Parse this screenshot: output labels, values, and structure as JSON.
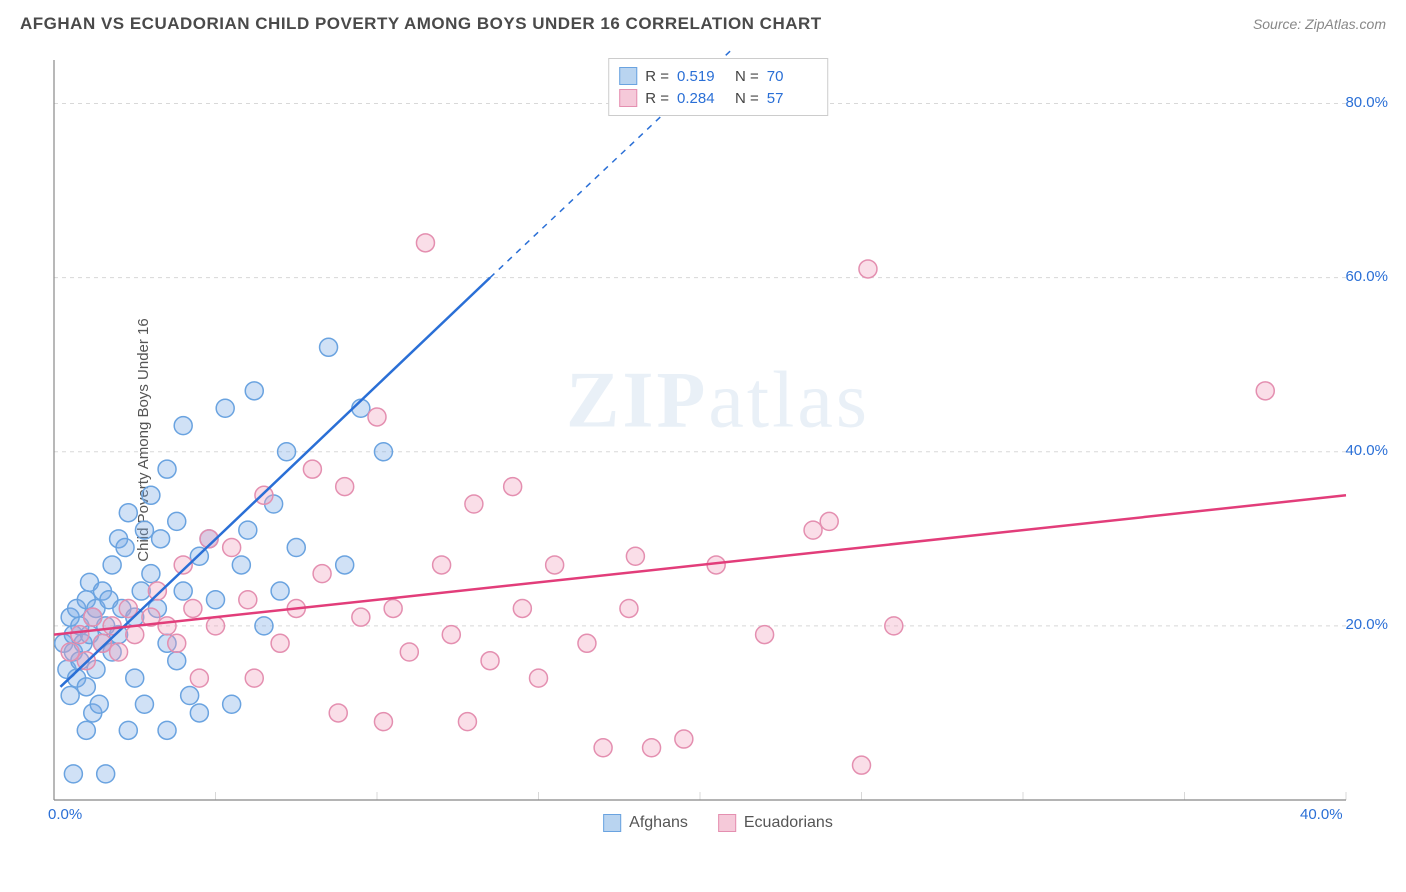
{
  "title": "AFGHAN VS ECUADORIAN CHILD POVERTY AMONG BOYS UNDER 16 CORRELATION CHART",
  "source": "Source: ZipAtlas.com",
  "y_axis_label": "Child Poverty Among Boys Under 16",
  "watermark": "ZIPatlas",
  "chart": {
    "type": "scatter",
    "background_color": "#ffffff",
    "grid_color": "#d8d8d8",
    "axis_color": "#888888",
    "tick_label_color": "#2a6fd6",
    "xlim": [
      0,
      40
    ],
    "ylim": [
      0,
      85
    ],
    "x_ticks": [
      0,
      5,
      10,
      15,
      20,
      25,
      30,
      35,
      40
    ],
    "x_tick_labels": [
      "0.0%",
      "",
      "",
      "",
      "",
      "",
      "",
      "",
      "40.0%"
    ],
    "y_ticks": [
      20,
      40,
      60,
      80
    ],
    "y_tick_labels": [
      "20.0%",
      "40.0%",
      "60.0%",
      "80.0%"
    ],
    "marker_radius": 9,
    "marker_stroke_width": 1.5,
    "trend_line_width": 2.5,
    "series": [
      {
        "name": "Afghans",
        "color_fill": "rgba(120,170,230,0.35)",
        "color_stroke": "#6aa3e0",
        "swatch_fill": "#b9d4f0",
        "swatch_stroke": "#6aa3e0",
        "R": "0.519",
        "N": "70",
        "trend": {
          "x1": 0.2,
          "y1": 13,
          "x2": 13.5,
          "y2": 60,
          "dash_from_x": 13.5,
          "dash_to_x": 21.5,
          "dash_to_y": 88
        },
        "trend_color": "#2a6fd6",
        "points": [
          [
            0.3,
            18
          ],
          [
            0.4,
            15
          ],
          [
            0.5,
            12
          ],
          [
            0.5,
            21
          ],
          [
            0.6,
            17
          ],
          [
            0.6,
            19
          ],
          [
            0.7,
            14
          ],
          [
            0.7,
            22
          ],
          [
            0.8,
            20
          ],
          [
            0.8,
            16
          ],
          [
            0.9,
            18
          ],
          [
            1.0,
            13
          ],
          [
            1.0,
            23
          ],
          [
            1.1,
            19
          ],
          [
            1.1,
            25
          ],
          [
            1.2,
            21
          ],
          [
            1.2,
            10
          ],
          [
            1.3,
            22
          ],
          [
            1.3,
            15
          ],
          [
            1.4,
            11
          ],
          [
            1.5,
            24
          ],
          [
            1.5,
            18
          ],
          [
            1.6,
            20
          ],
          [
            1.7,
            23
          ],
          [
            1.8,
            27
          ],
          [
            1.8,
            17
          ],
          [
            2.0,
            19
          ],
          [
            2.0,
            30
          ],
          [
            2.1,
            22
          ],
          [
            2.2,
            29
          ],
          [
            2.3,
            33
          ],
          [
            2.5,
            21
          ],
          [
            2.5,
            14
          ],
          [
            2.7,
            24
          ],
          [
            2.8,
            31
          ],
          [
            3.0,
            26
          ],
          [
            3.0,
            35
          ],
          [
            3.2,
            22
          ],
          [
            3.3,
            30
          ],
          [
            3.5,
            38
          ],
          [
            3.5,
            18
          ],
          [
            3.8,
            32
          ],
          [
            4.0,
            43
          ],
          [
            4.0,
            24
          ],
          [
            4.2,
            12
          ],
          [
            4.5,
            28
          ],
          [
            4.5,
            10
          ],
          [
            4.8,
            30
          ],
          [
            5.0,
            23
          ],
          [
            5.3,
            45
          ],
          [
            5.5,
            11
          ],
          [
            5.8,
            27
          ],
          [
            6.0,
            31
          ],
          [
            6.2,
            47
          ],
          [
            6.5,
            20
          ],
          [
            7.0,
            24
          ],
          [
            7.2,
            40
          ],
          [
            7.5,
            29
          ],
          [
            8.5,
            52
          ],
          [
            9.0,
            27
          ],
          [
            9.5,
            45
          ],
          [
            10.2,
            40
          ],
          [
            6.8,
            34
          ],
          [
            3.8,
            16
          ],
          [
            2.8,
            11
          ],
          [
            1.6,
            3
          ],
          [
            0.6,
            3
          ],
          [
            1.0,
            8
          ],
          [
            2.3,
            8
          ],
          [
            3.5,
            8
          ]
        ]
      },
      {
        "name": "Ecuadorians",
        "color_fill": "rgba(240,160,190,0.35)",
        "color_stroke": "#e48fb0",
        "swatch_fill": "#f5c9d9",
        "swatch_stroke": "#e48fb0",
        "R": "0.284",
        "N": "57",
        "trend": {
          "x1": 0,
          "y1": 19,
          "x2": 40,
          "y2": 35
        },
        "trend_color": "#e23d7a",
        "points": [
          [
            0.5,
            17
          ],
          [
            0.8,
            19
          ],
          [
            1.0,
            16
          ],
          [
            1.2,
            21
          ],
          [
            1.5,
            18
          ],
          [
            1.8,
            20
          ],
          [
            2.0,
            17
          ],
          [
            2.3,
            22
          ],
          [
            2.5,
            19
          ],
          [
            3.0,
            21
          ],
          [
            3.2,
            24
          ],
          [
            3.5,
            20
          ],
          [
            3.8,
            18
          ],
          [
            4.0,
            27
          ],
          [
            4.3,
            22
          ],
          [
            4.8,
            30
          ],
          [
            5.0,
            20
          ],
          [
            5.5,
            29
          ],
          [
            6.0,
            23
          ],
          [
            6.5,
            35
          ],
          [
            7.0,
            18
          ],
          [
            7.5,
            22
          ],
          [
            8.0,
            38
          ],
          [
            8.3,
            26
          ],
          [
            9.0,
            36
          ],
          [
            9.5,
            21
          ],
          [
            10.0,
            44
          ],
          [
            10.5,
            22
          ],
          [
            11.0,
            17
          ],
          [
            11.5,
            64
          ],
          [
            12.0,
            27
          ],
          [
            12.3,
            19
          ],
          [
            13.0,
            34
          ],
          [
            13.5,
            16
          ],
          [
            14.2,
            36
          ],
          [
            14.5,
            22
          ],
          [
            15.0,
            14
          ],
          [
            15.5,
            27
          ],
          [
            16.5,
            18
          ],
          [
            17.0,
            6
          ],
          [
            17.8,
            22
          ],
          [
            18.0,
            28
          ],
          [
            18.5,
            6
          ],
          [
            19.5,
            7
          ],
          [
            20.5,
            27
          ],
          [
            22.0,
            19
          ],
          [
            23.5,
            31
          ],
          [
            24.0,
            32
          ],
          [
            25.0,
            4
          ],
          [
            25.2,
            61
          ],
          [
            26.0,
            20
          ],
          [
            8.8,
            10
          ],
          [
            10.2,
            9
          ],
          [
            12.8,
            9
          ],
          [
            6.2,
            14
          ],
          [
            4.5,
            14
          ],
          [
            37.5,
            47
          ]
        ]
      }
    ]
  },
  "legend_stats_labels": {
    "R": "R =",
    "N": "N ="
  },
  "series_legend_labels": [
    "Afghans",
    "Ecuadorians"
  ]
}
